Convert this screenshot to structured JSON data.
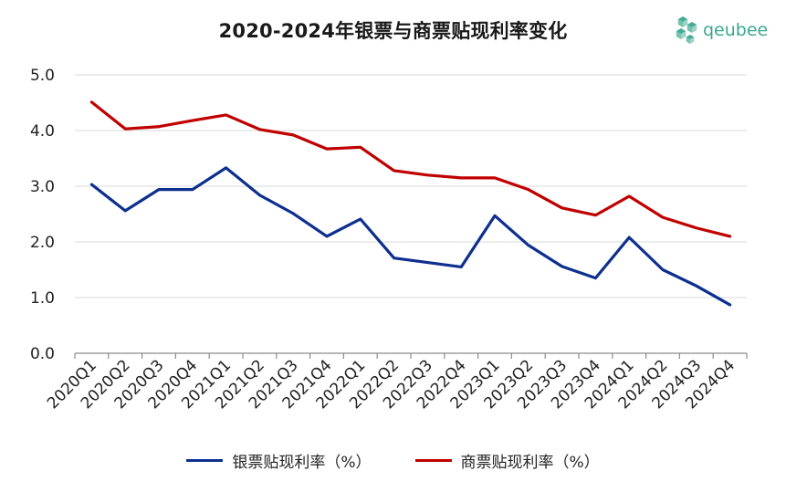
{
  "title": "2020-2024年银票与商票贴现利率变化",
  "logo": {
    "text": "qeubee",
    "icon": "cube-cluster-icon",
    "color": "#3aa88f"
  },
  "chart_data": {
    "type": "line",
    "title": "2020-2024年银票与商票贴现利率变化",
    "xlabel": "",
    "ylabel": "",
    "categories": [
      "2020Q1",
      "2020Q2",
      "2020Q3",
      "2020Q4",
      "2021Q1",
      "2021Q2",
      "2021Q3",
      "2021Q4",
      "2022Q1",
      "2022Q2",
      "2022Q3",
      "2022Q4",
      "2023Q1",
      "2023Q2",
      "2023Q3",
      "2023Q4",
      "2024Q1",
      "2024Q2",
      "2024Q3",
      "2024Q4"
    ],
    "ylim": [
      0,
      5
    ],
    "yticks": [
      "0.0",
      "1.0",
      "2.0",
      "3.0",
      "4.0",
      "5.0"
    ],
    "grid": true,
    "legend_position": "bottom",
    "series": [
      {
        "name": "银票贴现利率（%）",
        "color": "#0d2f8e",
        "values": [
          3.03,
          2.56,
          2.94,
          2.94,
          3.33,
          2.84,
          2.51,
          2.1,
          2.41,
          1.71,
          1.63,
          1.55,
          2.47,
          1.94,
          1.56,
          1.35,
          2.08,
          1.5,
          1.21,
          0.87
        ]
      },
      {
        "name": "商票贴现利率（%）",
        "color": "#c00000",
        "values": [
          4.51,
          4.03,
          4.07,
          4.18,
          4.28,
          4.02,
          3.92,
          3.67,
          3.7,
          3.28,
          3.2,
          3.15,
          3.15,
          2.94,
          2.61,
          2.48,
          2.82,
          2.44,
          2.25,
          2.1
        ]
      }
    ]
  }
}
